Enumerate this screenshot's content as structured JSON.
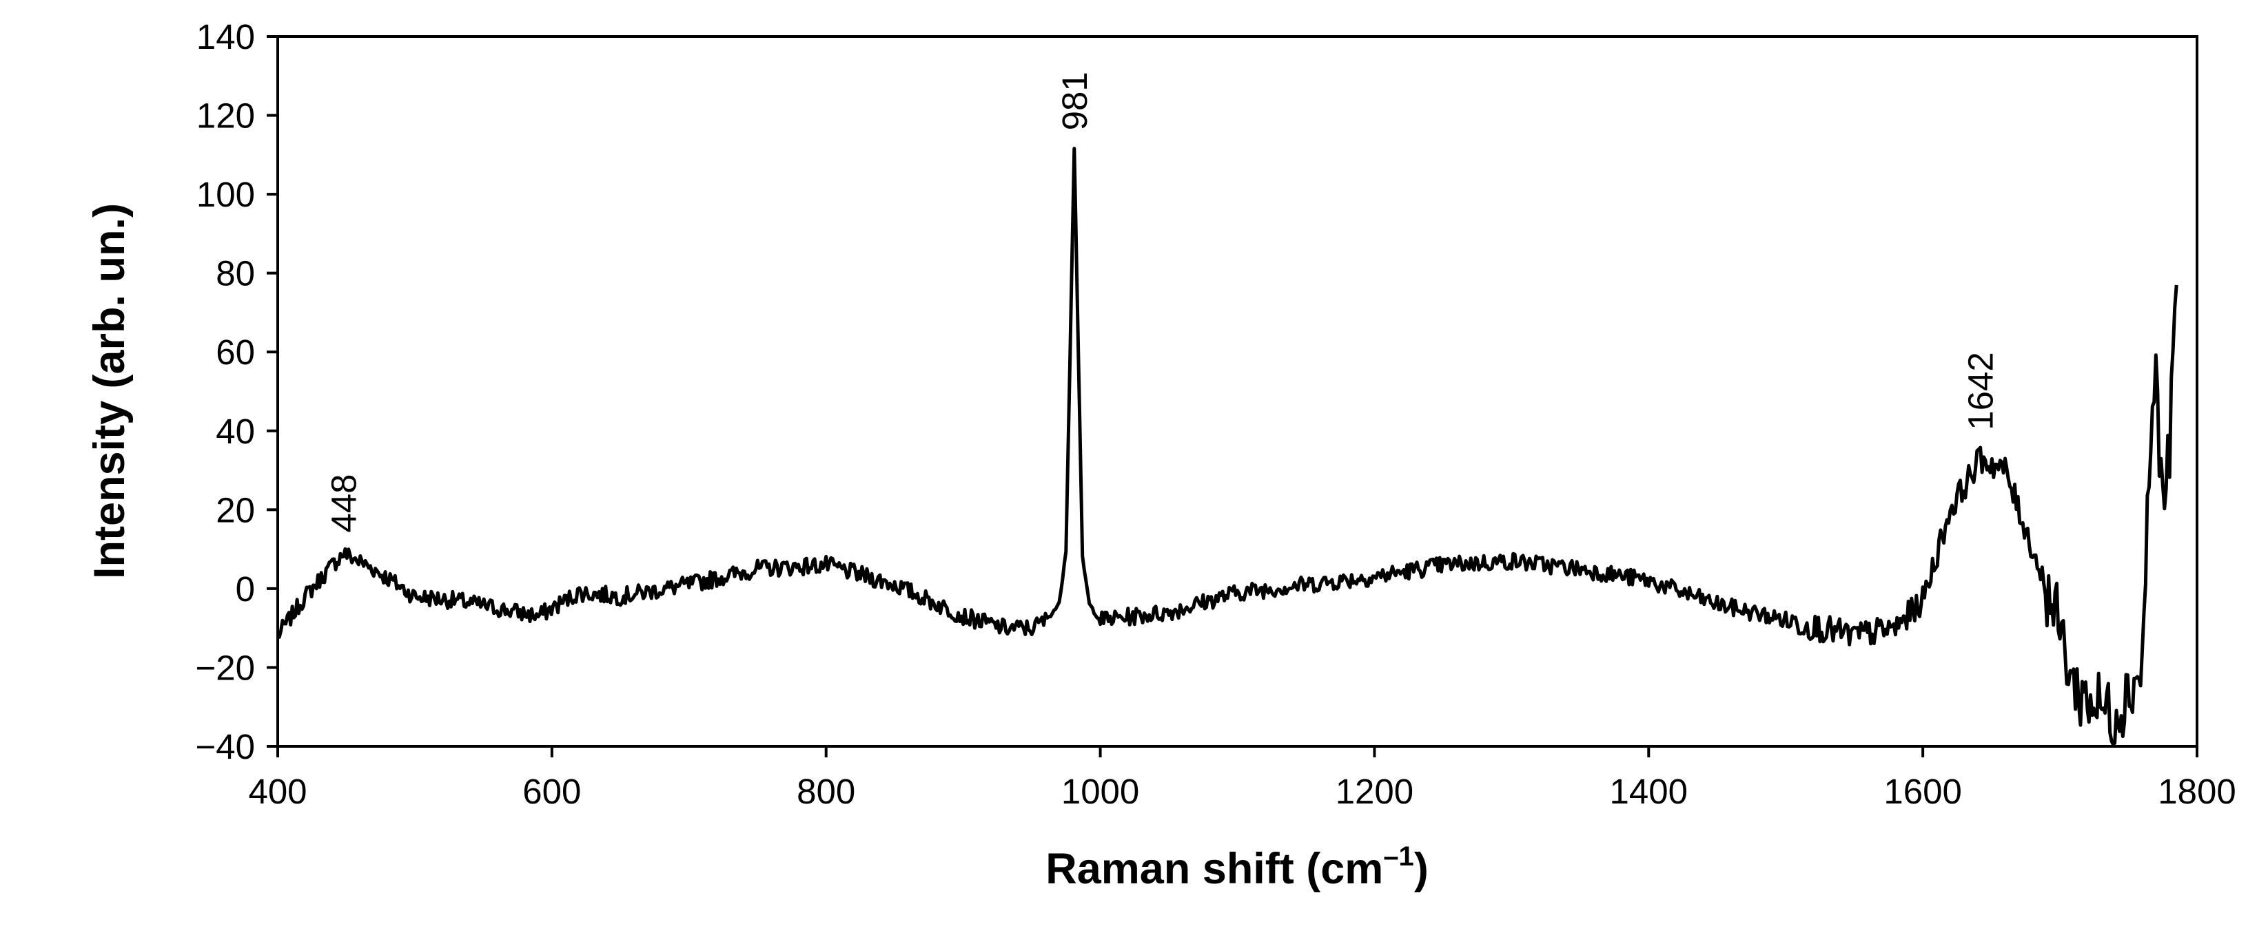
{
  "chart_data": {
    "type": "line",
    "title": "",
    "xlabel": "Raman shift (cm",
    "xlabel_sup": "–1",
    "xlabel_close": ")",
    "ylabel": "Intensity (arb. un.)",
    "xlim": [
      400,
      1800
    ],
    "ylim": [
      -40,
      140
    ],
    "xticks": [
      400,
      600,
      800,
      1000,
      1200,
      1400,
      1600,
      1800
    ],
    "yticks": [
      -40,
      -20,
      0,
      20,
      40,
      60,
      80,
      100,
      120,
      140
    ],
    "ytick_labels": [
      "−40",
      "−20",
      "0",
      "20",
      "40",
      "60",
      "80",
      "100",
      "120",
      "140"
    ],
    "grid": false,
    "legend": "none",
    "line_color": "#000000",
    "annotations": [
      {
        "text": "448",
        "x": 448,
        "y": 10
      },
      {
        "text": "981",
        "x": 981,
        "y": 112
      },
      {
        "text": "1642",
        "x": 1642,
        "y": 36
      }
    ],
    "series": [
      {
        "x": [
          400,
          420,
          440,
          448,
          470,
          500,
          530,
          560,
          590,
          620,
          650,
          700,
          750,
          800,
          850,
          900,
          930,
          950,
          960,
          970,
          975,
          978,
          981,
          984,
          987,
          992,
          1000,
          1050,
          1100,
          1150,
          1200,
          1250,
          1300,
          1350,
          1400,
          1450,
          1500,
          1550,
          1580,
          1600,
          1620,
          1642,
          1660,
          1680,
          1700,
          1710,
          1720,
          1740,
          1760,
          1765,
          1770,
          1775,
          1780,
          1785
        ],
        "y": [
          -12,
          -2,
          6,
          9,
          5,
          -2,
          -3,
          -5,
          -7,
          -1,
          -2,
          1,
          5,
          6,
          1,
          -7,
          -10,
          -10,
          -8,
          -4,
          10,
          60,
          112,
          60,
          8,
          -4,
          -8,
          -6,
          -1,
          1,
          3,
          6,
          7,
          5,
          2,
          -4,
          -8,
          -12,
          -10,
          -3,
          20,
          33,
          30,
          10,
          -10,
          -25,
          -28,
          -32,
          -20,
          30,
          55,
          20,
          35,
          77
        ]
      }
    ]
  }
}
